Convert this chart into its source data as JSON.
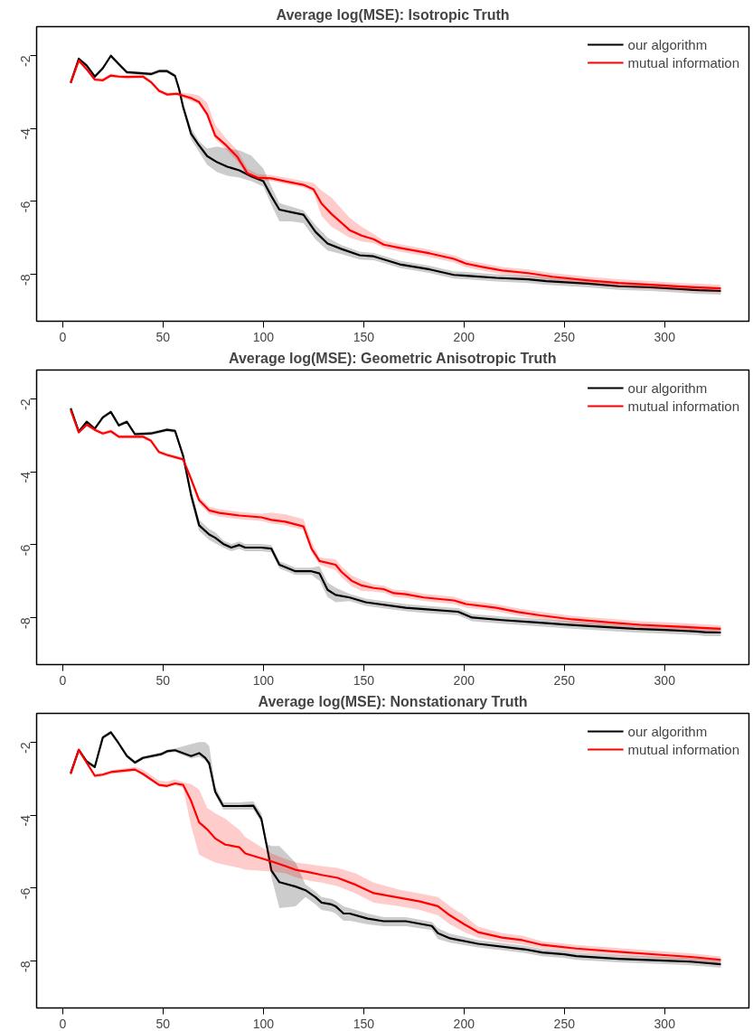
{
  "chart_data": [
    {
      "type": "line",
      "title": "Average log(MSE): Isotropic Truth",
      "xlim": [
        -13,
        342
      ],
      "ylim": [
        -9.29,
        -1.21
      ],
      "xticks": [
        0,
        50,
        100,
        150,
        200,
        250,
        300
      ],
      "yticks": [
        -2,
        -4,
        -6,
        -8
      ],
      "grid": false,
      "legend": "top right",
      "line_style": "solid",
      "marker": "none",
      "series": [
        {
          "name": "our algorithm",
          "color": "#000000",
          "x": [
            4,
            8,
            12,
            16,
            20,
            24,
            28,
            32,
            44,
            48,
            52,
            56,
            58,
            60,
            64,
            68,
            72,
            77,
            82,
            88,
            94,
            100,
            104,
            108,
            114,
            120,
            126,
            132,
            139,
            148,
            155,
            168,
            183,
            195,
            201,
            216,
            232,
            241,
            262,
            277,
            293,
            308,
            317,
            328
          ],
          "values": [
            -2.75,
            -2.09,
            -2.28,
            -2.58,
            -2.35,
            -2.01,
            -2.24,
            -2.46,
            -2.51,
            -2.43,
            -2.43,
            -2.56,
            -2.92,
            -3.41,
            -4.15,
            -4.47,
            -4.76,
            -4.93,
            -5.05,
            -5.15,
            -5.32,
            -5.45,
            -5.86,
            -6.23,
            -6.3,
            -6.37,
            -6.84,
            -7.16,
            -7.31,
            -7.48,
            -7.51,
            -7.73,
            -7.87,
            -8.02,
            -8.04,
            -8.1,
            -8.14,
            -8.19,
            -8.26,
            -8.33,
            -8.36,
            -8.41,
            -8.44,
            -8.46
          ],
          "lower": [
            -2.8,
            -2.14,
            -2.33,
            -2.63,
            -2.4,
            -2.06,
            -2.29,
            -2.51,
            -2.56,
            -2.48,
            -2.48,
            -2.61,
            -3.0,
            -3.5,
            -4.3,
            -4.65,
            -5.0,
            -5.2,
            -5.3,
            -5.35,
            -5.45,
            -5.6,
            -6.1,
            -6.55,
            -6.55,
            -6.6,
            -7.05,
            -7.35,
            -7.45,
            -7.6,
            -7.62,
            -7.83,
            -7.97,
            -8.12,
            -8.14,
            -8.2,
            -8.24,
            -8.29,
            -8.36,
            -8.43,
            -8.46,
            -8.51,
            -8.54,
            -8.56
          ],
          "upper": [
            -2.7,
            -2.04,
            -2.23,
            -2.53,
            -2.3,
            -1.96,
            -2.19,
            -2.41,
            -2.46,
            -2.38,
            -2.38,
            -2.51,
            -2.85,
            -3.3,
            -4.0,
            -4.35,
            -4.55,
            -4.5,
            -4.55,
            -4.6,
            -4.75,
            -5.1,
            -5.6,
            -6.05,
            -6.15,
            -6.25,
            -6.65,
            -7.0,
            -7.2,
            -7.38,
            -7.42,
            -7.63,
            -7.77,
            -7.92,
            -7.94,
            -8.0,
            -8.04,
            -8.09,
            -8.16,
            -8.23,
            -8.26,
            -8.31,
            -8.34,
            -8.36
          ]
        },
        {
          "name": "mutual information",
          "color": "#ff0000",
          "x": [
            4,
            8,
            12,
            16,
            20,
            24,
            28,
            32,
            40,
            44,
            48,
            52,
            57,
            64,
            68,
            72,
            76,
            81,
            87,
            92,
            97,
            104,
            111,
            120,
            125,
            129,
            134,
            143,
            149,
            155,
            160,
            168,
            183,
            195,
            201,
            209,
            219,
            232,
            244,
            262,
            277,
            293,
            308,
            328
          ],
          "values": [
            -2.75,
            -2.14,
            -2.38,
            -2.66,
            -2.68,
            -2.55,
            -2.58,
            -2.59,
            -2.58,
            -2.73,
            -2.97,
            -3.07,
            -3.05,
            -3.17,
            -3.28,
            -3.61,
            -4.2,
            -4.44,
            -4.78,
            -5.23,
            -5.35,
            -5.37,
            -5.45,
            -5.55,
            -5.67,
            -6.06,
            -6.35,
            -6.79,
            -6.94,
            -7.04,
            -7.19,
            -7.28,
            -7.43,
            -7.58,
            -7.71,
            -7.8,
            -7.9,
            -7.97,
            -8.07,
            -8.17,
            -8.24,
            -8.29,
            -8.34,
            -8.39
          ],
          "lower": [
            -2.8,
            -2.19,
            -2.43,
            -2.71,
            -2.73,
            -2.6,
            -2.63,
            -2.64,
            -2.63,
            -2.78,
            -3.02,
            -3.12,
            -3.1,
            -3.25,
            -3.35,
            -3.7,
            -4.3,
            -4.55,
            -4.9,
            -5.3,
            -5.42,
            -5.45,
            -5.52,
            -5.62,
            -5.75,
            -6.4,
            -6.7,
            -7.0,
            -7.1,
            -7.15,
            -7.28,
            -7.38,
            -7.53,
            -7.68,
            -7.81,
            -7.9,
            -8.0,
            -8.07,
            -8.17,
            -8.27,
            -8.34,
            -8.39,
            -8.44,
            -8.49
          ],
          "upper": [
            -2.7,
            -2.09,
            -2.33,
            -2.61,
            -2.63,
            -2.5,
            -2.53,
            -2.54,
            -2.53,
            -2.68,
            -2.92,
            -3.02,
            -3.0,
            -3.05,
            -3.1,
            -3.3,
            -3.9,
            -4.25,
            -4.6,
            -5.1,
            -5.25,
            -5.28,
            -5.35,
            -5.45,
            -5.5,
            -5.7,
            -5.9,
            -6.45,
            -6.7,
            -6.9,
            -7.08,
            -7.18,
            -7.33,
            -7.48,
            -7.61,
            -7.7,
            -7.8,
            -7.87,
            -7.97,
            -8.07,
            -8.14,
            -8.19,
            -8.24,
            -8.29
          ]
        }
      ]
    },
    {
      "type": "line",
      "title": "Average log(MSE): Geometric Anisotropic Truth",
      "xlim": [
        -13,
        342
      ],
      "ylim": [
        -9.29,
        -1.21
      ],
      "xticks": [
        0,
        50,
        100,
        150,
        200,
        250,
        300
      ],
      "yticks": [
        -2,
        -4,
        -6,
        -8
      ],
      "grid": false,
      "legend": "top right",
      "line_style": "solid",
      "marker": "none",
      "series": [
        {
          "name": "our algorithm",
          "color": "#000000",
          "x": [
            4,
            8,
            12,
            16,
            20,
            24,
            28,
            32,
            36,
            44,
            52,
            56,
            60,
            64,
            68,
            73,
            76,
            80,
            84,
            88,
            91,
            99,
            104,
            108,
            116,
            124,
            128,
            132,
            136,
            143,
            151,
            155,
            171,
            180,
            197,
            204,
            219,
            238,
            250,
            270,
            285,
            300,
            316,
            320,
            328
          ],
          "values": [
            -2.26,
            -2.9,
            -2.63,
            -2.82,
            -2.51,
            -2.36,
            -2.73,
            -2.63,
            -2.97,
            -2.95,
            -2.85,
            -2.88,
            -3.56,
            -4.64,
            -5.47,
            -5.72,
            -5.81,
            -5.98,
            -6.08,
            -6.01,
            -6.08,
            -6.08,
            -6.11,
            -6.55,
            -6.73,
            -6.73,
            -6.79,
            -7.24,
            -7.38,
            -7.45,
            -7.58,
            -7.61,
            -7.73,
            -7.77,
            -7.84,
            -8.0,
            -8.07,
            -8.14,
            -8.19,
            -8.26,
            -8.31,
            -8.34,
            -8.38,
            -8.4,
            -8.41
          ],
          "lower": [
            -2.31,
            -2.95,
            -2.68,
            -2.87,
            -2.56,
            -2.41,
            -2.78,
            -2.68,
            -3.02,
            -3.0,
            -2.9,
            -2.93,
            -3.66,
            -4.79,
            -5.62,
            -5.87,
            -5.96,
            -6.08,
            -6.18,
            -6.11,
            -6.18,
            -6.18,
            -6.21,
            -6.65,
            -6.83,
            -6.83,
            -6.99,
            -7.44,
            -7.58,
            -7.55,
            -7.68,
            -7.71,
            -7.83,
            -7.87,
            -7.94,
            -8.1,
            -8.17,
            -8.24,
            -8.29,
            -8.36,
            -8.41,
            -8.44,
            -8.48,
            -8.51,
            -8.51
          ],
          "upper": [
            -2.21,
            -2.85,
            -2.58,
            -2.77,
            -2.46,
            -2.31,
            -2.68,
            -2.58,
            -2.92,
            -2.9,
            -2.8,
            -2.83,
            -3.46,
            -4.49,
            -5.32,
            -5.57,
            -5.66,
            -5.88,
            -5.98,
            -5.91,
            -5.98,
            -5.98,
            -6.01,
            -6.45,
            -6.63,
            -6.63,
            -6.59,
            -7.04,
            -7.18,
            -7.35,
            -7.48,
            -7.51,
            -7.63,
            -7.67,
            -7.74,
            -7.9,
            -7.97,
            -8.04,
            -8.09,
            -8.16,
            -8.21,
            -8.24,
            -8.28,
            -8.31,
            -8.31
          ]
        },
        {
          "name": "mutual information",
          "color": "#ff0000",
          "x": [
            4,
            8,
            12,
            16,
            20,
            24,
            28,
            40,
            44,
            48,
            52,
            60,
            64,
            68,
            73,
            78,
            88,
            99,
            104,
            111,
            120,
            124,
            128,
            136,
            139,
            144,
            149,
            155,
            160,
            165,
            171,
            180,
            195,
            201,
            216,
            227,
            238,
            254,
            274,
            288,
            308,
            328
          ],
          "values": [
            -2.31,
            -2.92,
            -2.71,
            -2.85,
            -2.95,
            -2.89,
            -3.04,
            -3.04,
            -3.15,
            -3.46,
            -3.54,
            -3.66,
            -4.2,
            -4.78,
            -5.06,
            -5.13,
            -5.2,
            -5.25,
            -5.32,
            -5.37,
            -5.5,
            -6.11,
            -6.45,
            -6.55,
            -6.75,
            -6.99,
            -7.12,
            -7.19,
            -7.22,
            -7.33,
            -7.36,
            -7.45,
            -7.53,
            -7.63,
            -7.73,
            -7.85,
            -7.94,
            -8.05,
            -8.14,
            -8.2,
            -8.25,
            -8.31
          ],
          "lower": [
            -2.36,
            -2.97,
            -2.76,
            -2.9,
            -3.0,
            -2.94,
            -3.09,
            -3.09,
            -3.2,
            -3.51,
            -3.59,
            -3.71,
            -4.3,
            -4.88,
            -5.16,
            -5.23,
            -5.3,
            -5.35,
            -5.42,
            -5.47,
            -5.6,
            -6.21,
            -6.55,
            -6.7,
            -6.9,
            -7.14,
            -7.27,
            -7.29,
            -7.32,
            -7.43,
            -7.46,
            -7.55,
            -7.63,
            -7.73,
            -7.83,
            -7.95,
            -8.04,
            -8.15,
            -8.24,
            -8.3,
            -8.35,
            -8.41
          ],
          "upper": [
            -2.26,
            -2.87,
            -2.66,
            -2.8,
            -2.9,
            -2.84,
            -2.99,
            -2.99,
            -3.1,
            -3.41,
            -3.49,
            -3.61,
            -4.1,
            -4.68,
            -4.96,
            -5.03,
            -5.1,
            -5.15,
            -5.12,
            -5.17,
            -5.3,
            -5.91,
            -6.35,
            -6.4,
            -6.6,
            -6.84,
            -6.97,
            -7.09,
            -7.12,
            -7.23,
            -7.26,
            -7.35,
            -7.43,
            -7.53,
            -7.63,
            -7.75,
            -7.84,
            -7.95,
            -8.04,
            -8.1,
            -8.15,
            -8.21
          ]
        }
      ]
    },
    {
      "type": "line",
      "title": "Average log(MSE): Nonstationary Truth",
      "xlim": [
        -13,
        342
      ],
      "ylim": [
        -9.29,
        -1.21
      ],
      "xticks": [
        0,
        50,
        100,
        150,
        200,
        250,
        300
      ],
      "yticks": [
        -2,
        -4,
        -6,
        -8
      ],
      "grid": false,
      "legend": "top right",
      "line_style": "solid",
      "marker": "none",
      "series": [
        {
          "name": "our algorithm",
          "color": "#000000",
          "x": [
            4,
            8,
            12,
            16,
            20,
            24,
            28,
            32,
            36,
            40,
            49,
            52,
            56,
            64,
            68,
            71,
            73,
            76,
            80,
            88,
            95,
            99,
            102,
            104,
            108,
            116,
            121,
            126,
            129,
            134,
            136,
            140,
            143,
            152,
            160,
            171,
            184,
            187,
            193,
            207,
            230,
            239,
            250,
            256,
            277,
            300,
            313,
            328
          ],
          "values": [
            -2.85,
            -2.21,
            -2.53,
            -2.68,
            -1.87,
            -1.73,
            -2.04,
            -2.38,
            -2.56,
            -2.43,
            -2.33,
            -2.25,
            -2.22,
            -2.38,
            -2.3,
            -2.43,
            -2.58,
            -3.36,
            -3.75,
            -3.75,
            -3.74,
            -4.1,
            -4.93,
            -5.52,
            -5.84,
            -5.96,
            -6.06,
            -6.25,
            -6.4,
            -6.45,
            -6.5,
            -6.7,
            -6.7,
            -6.84,
            -6.91,
            -6.91,
            -7.04,
            -7.24,
            -7.38,
            -7.53,
            -7.68,
            -7.77,
            -7.82,
            -7.87,
            -7.94,
            -7.99,
            -8.02,
            -8.09
          ],
          "lower": [
            -2.9,
            -2.26,
            -2.58,
            -2.73,
            -1.92,
            -1.78,
            -2.09,
            -2.43,
            -2.61,
            -2.48,
            -2.38,
            -2.3,
            -2.27,
            -2.45,
            -2.4,
            -2.5,
            -2.65,
            -3.45,
            -3.85,
            -3.85,
            -3.85,
            -4.2,
            -5.0,
            -5.7,
            -6.55,
            -6.5,
            -6.25,
            -6.45,
            -6.6,
            -6.65,
            -6.7,
            -6.9,
            -6.9,
            -7.0,
            -7.05,
            -7.05,
            -7.15,
            -7.4,
            -7.5,
            -7.63,
            -7.78,
            -7.87,
            -7.92,
            -7.97,
            -8.04,
            -8.09,
            -8.12,
            -8.19
          ],
          "upper": [
            -2.8,
            -2.16,
            -2.48,
            -2.63,
            -1.82,
            -1.68,
            -1.99,
            -2.33,
            -2.51,
            -2.38,
            -2.28,
            -2.2,
            -2.17,
            -2.05,
            -2.0,
            -2.0,
            -2.1,
            -3.2,
            -3.65,
            -3.65,
            -3.62,
            -3.95,
            -4.8,
            -4.85,
            -4.85,
            -5.3,
            -5.9,
            -6.1,
            -6.25,
            -6.3,
            -6.35,
            -6.5,
            -6.55,
            -6.7,
            -6.8,
            -6.8,
            -6.93,
            -7.1,
            -7.25,
            -7.43,
            -7.58,
            -7.67,
            -7.72,
            -7.77,
            -7.84,
            -7.89,
            -7.92,
            -7.99
          ]
        },
        {
          "name": "mutual information",
          "color": "#ff0000",
          "x": [
            4,
            8,
            16,
            20,
            24,
            36,
            40,
            48,
            52,
            56,
            60,
            64,
            68,
            72,
            76,
            81,
            88,
            91,
            104,
            111,
            116,
            123,
            129,
            137,
            146,
            155,
            168,
            178,
            187,
            193,
            200,
            207,
            219,
            229,
            239,
            256,
            277,
            300,
            313,
            328
          ],
          "values": [
            -2.87,
            -2.21,
            -2.92,
            -2.89,
            -2.82,
            -2.75,
            -2.87,
            -3.17,
            -3.2,
            -3.13,
            -3.17,
            -3.61,
            -4.2,
            -4.39,
            -4.64,
            -4.81,
            -4.88,
            -5.05,
            -5.27,
            -5.4,
            -5.5,
            -5.57,
            -5.64,
            -5.72,
            -5.91,
            -6.14,
            -6.27,
            -6.37,
            -6.5,
            -6.75,
            -6.99,
            -7.21,
            -7.36,
            -7.43,
            -7.56,
            -7.66,
            -7.75,
            -7.84,
            -7.89,
            -7.97
          ],
          "lower": [
            -2.92,
            -2.26,
            -2.97,
            -2.94,
            -2.87,
            -2.8,
            -2.92,
            -3.22,
            -3.25,
            -3.18,
            -3.25,
            -4.3,
            -5.08,
            -5.2,
            -5.3,
            -5.37,
            -5.45,
            -5.5,
            -5.55,
            -5.6,
            -5.7,
            -5.8,
            -5.85,
            -5.95,
            -6.15,
            -6.4,
            -6.5,
            -6.6,
            -6.75,
            -7.0,
            -7.2,
            -7.36,
            -7.48,
            -7.55,
            -7.66,
            -7.76,
            -7.85,
            -7.94,
            -7.99,
            -8.06
          ],
          "upper": [
            -2.82,
            -2.16,
            -2.87,
            -2.84,
            -2.77,
            -2.68,
            -2.75,
            -3.05,
            -3.08,
            -3.02,
            -3.1,
            -3.15,
            -3.3,
            -3.8,
            -3.95,
            -4.1,
            -4.4,
            -4.6,
            -5.05,
            -5.2,
            -5.3,
            -5.35,
            -5.4,
            -5.45,
            -5.6,
            -5.85,
            -6.05,
            -6.15,
            -6.25,
            -6.5,
            -6.75,
            -7.06,
            -7.24,
            -7.31,
            -7.46,
            -7.56,
            -7.65,
            -7.74,
            -7.79,
            -7.88
          ]
        }
      ]
    }
  ]
}
